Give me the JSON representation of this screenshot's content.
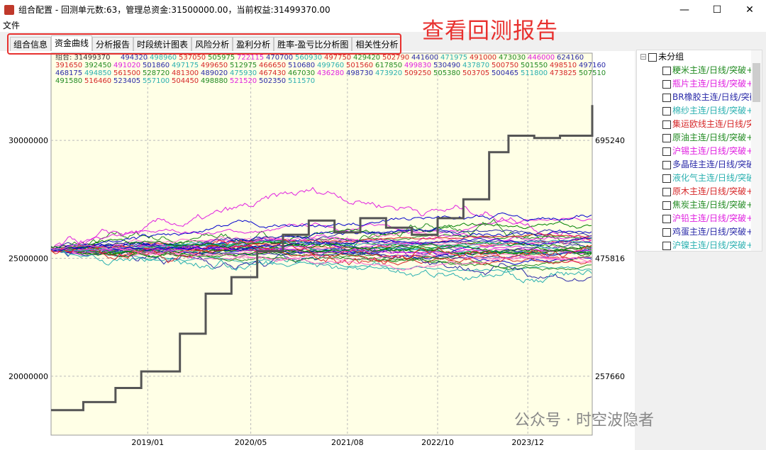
{
  "window": {
    "title": "组合配置 - 回测单元数:63，管理总资金:31500000.00，当前权益:31499370.00",
    "min": "—",
    "max": "☐",
    "close": "✕"
  },
  "menu": {
    "file": "文件"
  },
  "annotation": "查看回测报告",
  "tabs": [
    "组合信息",
    "资金曲线",
    "分析报告",
    "时段统计图表",
    "风险分析",
    "盈利分析",
    "胜率-盈亏比分析图",
    "相关性分析"
  ],
  "active_tab": 1,
  "legend_rows": [
    [
      "组合: 31499370",
      "494320",
      "498960",
      "537050",
      "505975",
      "722115",
      "470700",
      "560930",
      "497750",
      "429420",
      "502790",
      "441600",
      "471975",
      "491000",
      "473030",
      "446000",
      "624160"
    ],
    [
      "391650",
      "392450",
      "491020",
      "501860",
      "497175",
      "499650",
      "512975",
      "466650",
      "510680",
      "499760",
      "501560",
      "617850",
      "499830",
      "530490",
      "437870",
      "500750",
      "501550",
      "498510",
      "497160"
    ],
    [
      "468175",
      "494850",
      "561500",
      "528720",
      "481300",
      "489020",
      "475930",
      "467430",
      "467030",
      "436280",
      "498730",
      "473920",
      "509250",
      "505380",
      "503705",
      "500465",
      "511800",
      "473825",
      "507510"
    ],
    [
      "491580",
      "516460",
      "523405",
      "557100",
      "504450",
      "498880",
      "521520",
      "502350",
      "511570"
    ]
  ],
  "legend_colors": [
    "#d62728",
    "#2a2aa8",
    "#2ab0b0",
    "#d62728",
    "#228b22",
    "#e020e0",
    "#2a2aa8",
    "#2ab0b0",
    "#d62728",
    "#228b22"
  ],
  "colors": {
    "accent": "#e8312f",
    "plot_bg": "#ffffe6",
    "portfolio": "#555555"
  },
  "chart_data": {
    "type": "line",
    "x_ticks": [
      "2019/01",
      "2020/05",
      "2021/08",
      "2022/10",
      "2023/12"
    ],
    "y_left_ticks": [
      20000000,
      25000000,
      30000000
    ],
    "y_right_ticks": [
      "257660",
      "475816",
      "695240"
    ],
    "ylim": [
      17500000,
      33700000
    ],
    "grid": true,
    "portfolio": {
      "x": [
        "2017/10",
        "2018/03",
        "2018/08",
        "2018/12",
        "2019/06",
        "2019/10",
        "2020/02",
        "2020/06",
        "2020/10",
        "2021/02",
        "2021/06",
        "2021/10",
        "2022/02",
        "2022/06",
        "2022/10",
        "2023/02",
        "2023/06",
        "2023/09",
        "2024/01",
        "2024/05",
        "2024/10"
      ],
      "y": [
        18560000,
        18900000,
        19500000,
        20200000,
        21800000,
        23500000,
        24200000,
        25300000,
        26000000,
        26600000,
        26100000,
        26700000,
        26300000,
        26000000,
        26700000,
        27500000,
        29500000,
        30200000,
        30100000,
        30200000,
        31500000
      ]
    }
  },
  "tree": {
    "root": "未分组",
    "items": [
      {
        "label": "粳米主连/日线/突破+",
        "color": "#228b22"
      },
      {
        "label": "瓶片主连/日线/突破+",
        "color": "#e020e0"
      },
      {
        "label": "BR橡胶主连/日线/突破",
        "color": "#2a2aa8"
      },
      {
        "label": "棉纱主连/日线/突破+",
        "color": "#2ab0b0"
      },
      {
        "label": "集运欧线主连/日线/突",
        "color": "#d62728"
      },
      {
        "label": "原油主连/日线/突破+",
        "color": "#228b22"
      },
      {
        "label": "沪锡主连/日线/突破+",
        "color": "#e020e0"
      },
      {
        "label": "多晶硅主连/日线/突破",
        "color": "#2a2aa8"
      },
      {
        "label": "液化气主连/日线/突破",
        "color": "#2ab0b0"
      },
      {
        "label": "原木主连/日线/突破+",
        "color": "#d62728"
      },
      {
        "label": "焦炭主连/日线/突破+",
        "color": "#228b22"
      },
      {
        "label": "沪铅主连/日线/突破+",
        "color": "#e020e0"
      },
      {
        "label": "鸡蛋主连/日线/突破+",
        "color": "#2a2aa8"
      },
      {
        "label": "沪镍主连/日线/突破+",
        "color": "#2ab0b0"
      }
    ]
  },
  "watermark": "公众号 · 时空波隐者"
}
